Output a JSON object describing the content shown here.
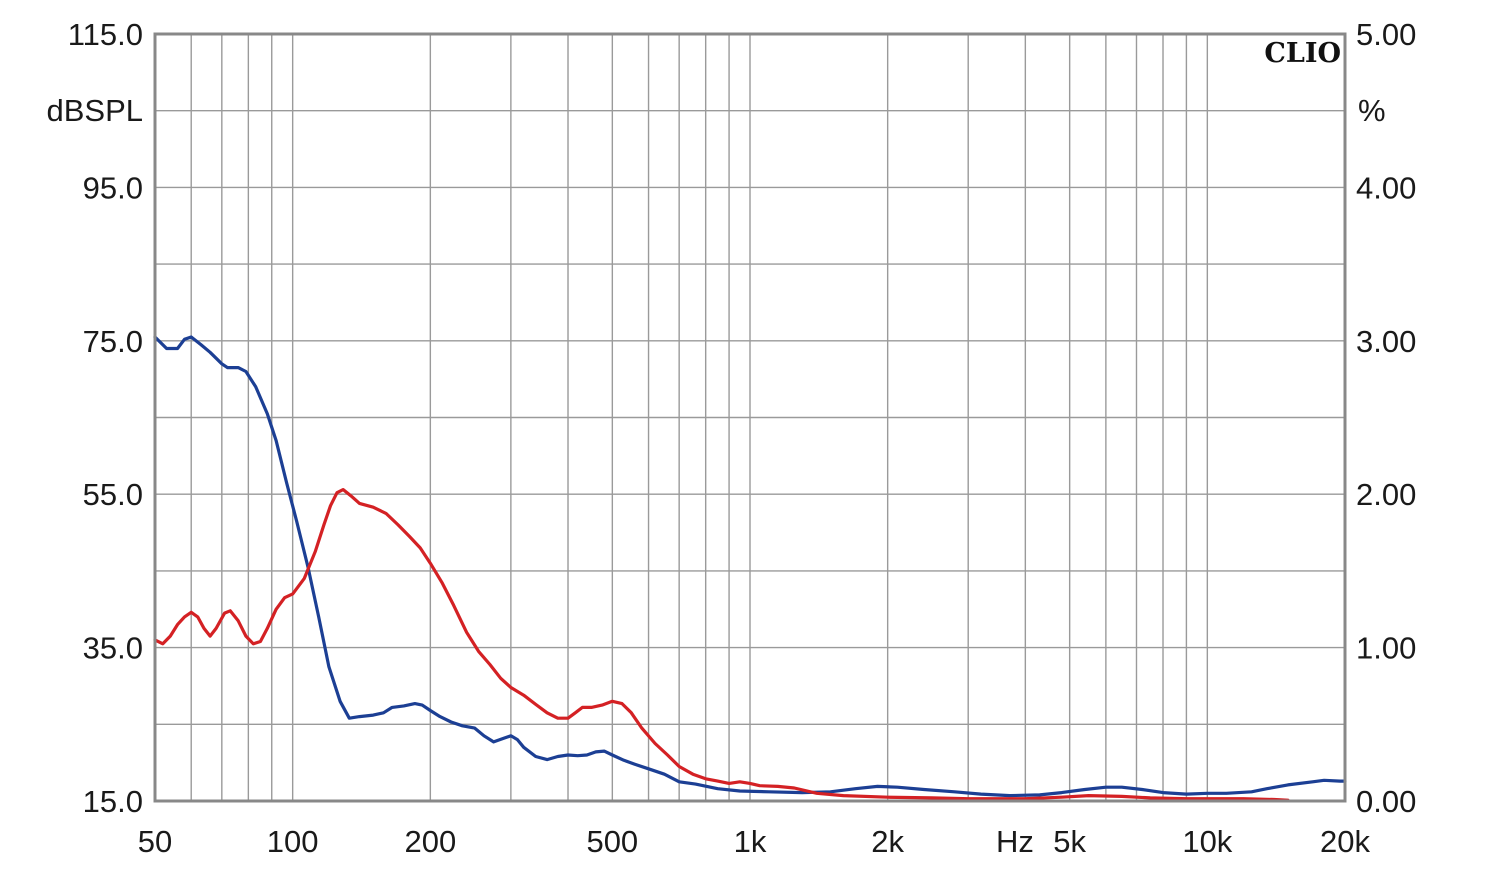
{
  "chart_data": {
    "type": "line",
    "brand": "CLIO",
    "x_scale": "log",
    "xlim": [
      50,
      20000
    ],
    "ylim_left": [
      15,
      115
    ],
    "ylim_right": [
      0,
      5
    ],
    "left_unit": "dBSPL",
    "right_unit": "%",
    "x_unit": "Hz",
    "grid": true,
    "left_ticks": [
      {
        "value": 115,
        "label": "115.0"
      },
      {
        "value": 95,
        "label": "95.0"
      },
      {
        "value": 75,
        "label": "75.0"
      },
      {
        "value": 55,
        "label": "55.0"
      },
      {
        "value": 35,
        "label": "35.0"
      },
      {
        "value": 15,
        "label": "15.0"
      }
    ],
    "right_ticks": [
      {
        "value": 5,
        "label": "5.00"
      },
      {
        "value": 4,
        "label": "4.00"
      },
      {
        "value": 3,
        "label": "3.00"
      },
      {
        "value": 2,
        "label": "2.00"
      },
      {
        "value": 1,
        "label": "1.00"
      },
      {
        "value": 0,
        "label": "0.00"
      }
    ],
    "x_ticks": [
      {
        "value": 50,
        "label": "50"
      },
      {
        "value": 100,
        "label": "100"
      },
      {
        "value": 200,
        "label": "200"
      },
      {
        "value": 500,
        "label": "500"
      },
      {
        "value": 1000,
        "label": "1k"
      },
      {
        "value": 2000,
        "label": "2k"
      },
      {
        "value": 5000,
        "label": "5k"
      },
      {
        "value": 10000,
        "label": "10k"
      },
      {
        "value": 20000,
        "label": "20k"
      }
    ],
    "series": [
      {
        "color": "#1c3f94",
        "axis": "left",
        "points": [
          [
            50,
            75.5
          ],
          [
            53,
            74.0
          ],
          [
            56,
            74.0
          ],
          [
            58,
            75.2
          ],
          [
            60,
            75.5
          ],
          [
            63,
            74.5
          ],
          [
            66,
            73.5
          ],
          [
            70,
            72.0
          ],
          [
            72,
            71.5
          ],
          [
            76,
            71.5
          ],
          [
            79,
            71.0
          ],
          [
            83,
            69.0
          ],
          [
            88,
            65.5
          ],
          [
            92,
            62.0
          ],
          [
            97,
            56.5
          ],
          [
            102,
            51.5
          ],
          [
            108,
            45.5
          ],
          [
            114,
            39.0
          ],
          [
            120,
            32.5
          ],
          [
            127,
            28.0
          ],
          [
            133,
            25.8
          ],
          [
            140,
            26.0
          ],
          [
            150,
            26.2
          ],
          [
            158,
            26.5
          ],
          [
            165,
            27.2
          ],
          [
            175,
            27.4
          ],
          [
            185,
            27.7
          ],
          [
            192,
            27.5
          ],
          [
            200,
            26.8
          ],
          [
            210,
            26.0
          ],
          [
            222,
            25.3
          ],
          [
            235,
            24.8
          ],
          [
            250,
            24.5
          ],
          [
            262,
            23.5
          ],
          [
            275,
            22.7
          ],
          [
            290,
            23.2
          ],
          [
            300,
            23.5
          ],
          [
            310,
            23.0
          ],
          [
            320,
            22.0
          ],
          [
            340,
            20.8
          ],
          [
            360,
            20.4
          ],
          [
            380,
            20.8
          ],
          [
            400,
            21.0
          ],
          [
            420,
            20.9
          ],
          [
            440,
            21.0
          ],
          [
            460,
            21.4
          ],
          [
            480,
            21.5
          ],
          [
            500,
            21.0
          ],
          [
            530,
            20.3
          ],
          [
            560,
            19.8
          ],
          [
            600,
            19.2
          ],
          [
            650,
            18.5
          ],
          [
            700,
            17.5
          ],
          [
            760,
            17.2
          ],
          [
            850,
            16.6
          ],
          [
            950,
            16.3
          ],
          [
            1100,
            16.2
          ],
          [
            1300,
            16.1
          ],
          [
            1500,
            16.2
          ],
          [
            1700,
            16.6
          ],
          [
            1900,
            16.9
          ],
          [
            2100,
            16.8
          ],
          [
            2400,
            16.5
          ],
          [
            2800,
            16.2
          ],
          [
            3200,
            15.9
          ],
          [
            3700,
            15.7
          ],
          [
            4300,
            15.8
          ],
          [
            4800,
            16.1
          ],
          [
            5400,
            16.5
          ],
          [
            6000,
            16.8
          ],
          [
            6500,
            16.8
          ],
          [
            7200,
            16.5
          ],
          [
            8000,
            16.1
          ],
          [
            9000,
            15.9
          ],
          [
            10000,
            16.0
          ],
          [
            11000,
            16.0
          ],
          [
            12500,
            16.2
          ],
          [
            13500,
            16.6
          ],
          [
            15000,
            17.1
          ],
          [
            17000,
            17.5
          ],
          [
            18000,
            17.7
          ],
          [
            19500,
            17.6
          ],
          [
            20000,
            17.6
          ]
        ]
      },
      {
        "color": "#d42124",
        "axis": "left",
        "points": [
          [
            50,
            36.0
          ],
          [
            52,
            35.5
          ],
          [
            54,
            36.5
          ],
          [
            56,
            38.0
          ],
          [
            58,
            39.0
          ],
          [
            60,
            39.6
          ],
          [
            62,
            39.0
          ],
          [
            64,
            37.5
          ],
          [
            66,
            36.5
          ],
          [
            68,
            37.5
          ],
          [
            71,
            39.5
          ],
          [
            73,
            39.8
          ],
          [
            76,
            38.5
          ],
          [
            79,
            36.5
          ],
          [
            82,
            35.5
          ],
          [
            85,
            35.8
          ],
          [
            88,
            37.5
          ],
          [
            92,
            40.0
          ],
          [
            96,
            41.5
          ],
          [
            100,
            42.0
          ],
          [
            106,
            44.0
          ],
          [
            112,
            47.5
          ],
          [
            117,
            51.0
          ],
          [
            121,
            53.5
          ],
          [
            125,
            55.2
          ],
          [
            129,
            55.6
          ],
          [
            134,
            54.8
          ],
          [
            140,
            53.8
          ],
          [
            150,
            53.3
          ],
          [
            160,
            52.5
          ],
          [
            170,
            51.0
          ],
          [
            180,
            49.5
          ],
          [
            190,
            48.0
          ],
          [
            200,
            46.0
          ],
          [
            212,
            43.5
          ],
          [
            225,
            40.5
          ],
          [
            240,
            37.0
          ],
          [
            255,
            34.5
          ],
          [
            270,
            32.8
          ],
          [
            285,
            31.0
          ],
          [
            300,
            29.8
          ],
          [
            320,
            28.8
          ],
          [
            340,
            27.6
          ],
          [
            360,
            26.5
          ],
          [
            380,
            25.8
          ],
          [
            400,
            25.8
          ],
          [
            415,
            26.5
          ],
          [
            430,
            27.2
          ],
          [
            450,
            27.2
          ],
          [
            475,
            27.5
          ],
          [
            500,
            28.0
          ],
          [
            525,
            27.7
          ],
          [
            550,
            26.5
          ],
          [
            580,
            24.5
          ],
          [
            620,
            22.5
          ],
          [
            660,
            21.0
          ],
          [
            700,
            19.5
          ],
          [
            750,
            18.5
          ],
          [
            800,
            17.9
          ],
          [
            850,
            17.6
          ],
          [
            900,
            17.3
          ],
          [
            950,
            17.5
          ],
          [
            1000,
            17.3
          ],
          [
            1050,
            17.0
          ],
          [
            1150,
            16.9
          ],
          [
            1250,
            16.7
          ],
          [
            1400,
            16.0
          ],
          [
            1600,
            15.7
          ],
          [
            2000,
            15.5
          ],
          [
            2500,
            15.4
          ],
          [
            3000,
            15.3
          ],
          [
            3500,
            15.3
          ],
          [
            4000,
            15.3
          ],
          [
            4800,
            15.5
          ],
          [
            5500,
            15.7
          ],
          [
            6500,
            15.6
          ],
          [
            7500,
            15.4
          ],
          [
            9000,
            15.3
          ],
          [
            10500,
            15.3
          ],
          [
            12000,
            15.3
          ],
          [
            14000,
            15.2
          ],
          [
            15000,
            15.1
          ]
        ]
      }
    ]
  }
}
